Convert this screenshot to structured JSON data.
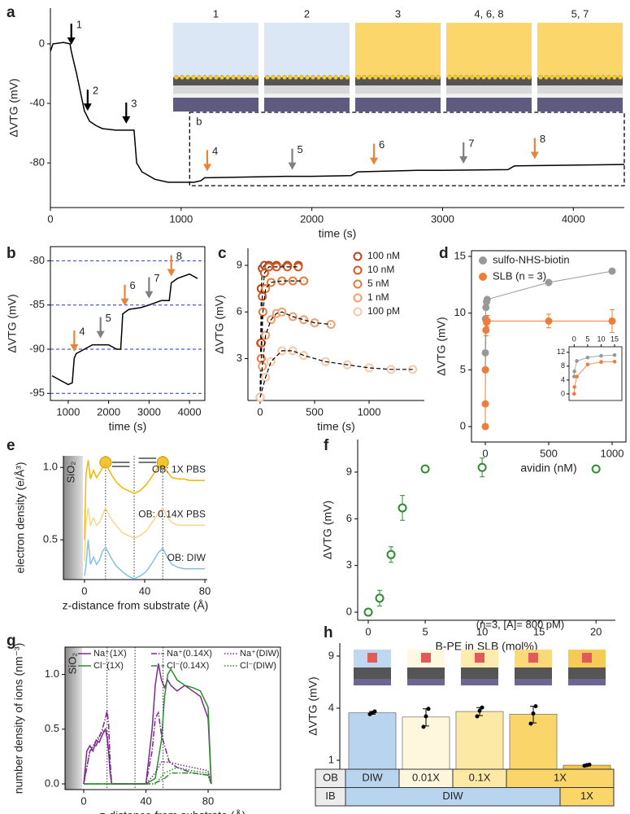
{
  "chart_data": [
    {
      "type": "line",
      "label": "a",
      "xlabel": "time (s)",
      "ylabel": "ΔVTG (mV)",
      "xlim": [
        0,
        4390
      ],
      "ylim": [
        -110,
        24
      ],
      "xticks": [
        0,
        1000,
        2000,
        3000,
        4000
      ],
      "yticks": [
        -80,
        -40,
        0
      ],
      "x": [
        0,
        20,
        100,
        150,
        160,
        200,
        260,
        300,
        350,
        400,
        500,
        640,
        660,
        700,
        800,
        900,
        1000,
        1100,
        1150,
        1180,
        1500,
        1800,
        2000,
        2300,
        2350,
        2800,
        3000,
        3500,
        3550,
        4000,
        4390
      ],
      "series": [
        {
          "color": "#000000",
          "line": "solid",
          "values": [
            -5,
            0,
            1,
            0,
            -5,
            -20,
            -45,
            -52,
            -55,
            -57,
            -58,
            -58,
            -80,
            -86,
            -91,
            -93,
            -93,
            -93,
            -92,
            -90,
            -89.5,
            -89,
            -89,
            -88.5,
            -86,
            -85,
            -85,
            -84.5,
            -82,
            -81.5,
            -81
          ]
        }
      ],
      "events": [
        {
          "label": "1",
          "x": 160,
          "color": "#000000"
        },
        {
          "label": "2",
          "x": 285,
          "color": "#000000"
        },
        {
          "label": "3",
          "x": 580,
          "color": "#000000"
        },
        {
          "label": "4",
          "x": 1200,
          "color": "#e8833a"
        },
        {
          "label": "5",
          "x": 1850,
          "color": "#808080"
        },
        {
          "label": "6",
          "x": 2475,
          "color": "#e8833a"
        },
        {
          "label": "7",
          "x": 3160,
          "color": "#808080"
        },
        {
          "label": "8",
          "x": 3705,
          "color": "#e8833a"
        }
      ],
      "zoom_box": {
        "label": "b",
        "xlim": [
          1065,
          4390
        ],
        "ylim": [
          -95.3,
          -46
        ]
      },
      "schematic": {
        "labels": [
          "1",
          "2",
          "3",
          "4, 6, 8",
          "5, 7"
        ],
        "label_colors": [
          "#000000",
          "#000000",
          "#000000",
          "#e8833a",
          "#808080"
        ],
        "backgrounds": [
          "#dbe7f4",
          "#dbe7f4",
          "#fbd66b",
          "#fbd66b",
          "#fbd66b"
        ]
      }
    },
    {
      "type": "line",
      "label": "b",
      "xlabel": "time (s)",
      "ylabel": "ΔVTG (mV)",
      "frame": true,
      "grid": true,
      "grid_color": "#2233cc",
      "xlim": [
        560,
        4380
      ],
      "ylim": [
        -95.8,
        -78.4
      ],
      "xticks": [
        1000,
        2000,
        3000,
        4000
      ],
      "yticks": [
        -80,
        -85,
        -90,
        -95
      ],
      "x": [
        600,
        800,
        1000,
        1100,
        1150,
        1200,
        1400,
        1600,
        1800,
        2000,
        2200,
        2300,
        2350,
        2500,
        2800,
        3000,
        3300,
        3500,
        3550,
        3700,
        4000,
        4200
      ],
      "series": [
        {
          "color": "#000000",
          "line": "solid",
          "values": [
            -93,
            -93.5,
            -94,
            -93.8,
            -91,
            -90.5,
            -90,
            -89.5,
            -89.5,
            -89.5,
            -90,
            -90,
            -86,
            -85.5,
            -85.3,
            -85,
            -84.5,
            -84.5,
            -82.5,
            -82,
            -81.5,
            -82
          ]
        }
      ],
      "events": [
        {
          "label": "4",
          "x": 1150,
          "color": "#e8833a"
        },
        {
          "label": "5",
          "x": 1800,
          "color": "#808080"
        },
        {
          "label": "6",
          "x": 2400,
          "color": "#e8833a"
        },
        {
          "label": "7",
          "x": 3000,
          "color": "#808080"
        },
        {
          "label": "8",
          "x": 3550,
          "color": "#e8833a"
        }
      ]
    },
    {
      "type": "scatter",
      "label": "c",
      "xlabel": "time (s)",
      "ylabel": "ΔVTG (mV)",
      "legend": "upper right",
      "fit_line": "dashed",
      "xlim": [
        -112,
        1507
      ],
      "ylim": [
        0.3,
        10.1
      ],
      "xticks": [
        0,
        500,
        1000
      ],
      "yticks": [
        3,
        6,
        9
      ],
      "series": [
        {
          "name": "100 nM",
          "color": "#b5451b",
          "marker": "open",
          "x": [
            0,
            5,
            10,
            20,
            40,
            80,
            150,
            250,
            350
          ],
          "values": [
            0.5,
            4,
            7.5,
            8.8,
            9,
            9,
            9,
            9,
            9
          ]
        },
        {
          "name": "10 nM",
          "color": "#d9581c",
          "marker": "open",
          "x": [
            0,
            10,
            20,
            40,
            80,
            150,
            250,
            350
          ],
          "values": [
            0.5,
            4,
            7,
            8.5,
            8.9,
            8.9,
            8.9,
            8.9
          ]
        },
        {
          "name": "5 nM",
          "color": "#e87a3a",
          "marker": "open",
          "x": [
            0,
            10,
            25,
            50,
            100,
            200,
            300,
            400
          ],
          "values": [
            0.5,
            3,
            6,
            7.5,
            7.9,
            8,
            8,
            8
          ]
        },
        {
          "name": "1 nM",
          "color": "#f0a070",
          "marker": "open",
          "x": [
            0,
            20,
            50,
            100,
            150,
            200,
            300,
            400,
            500,
            650
          ],
          "values": [
            0.5,
            2.5,
            4.5,
            5.5,
            5.9,
            6,
            5.7,
            5.5,
            5.3,
            5.2
          ]
        },
        {
          "name": "100 pM",
          "color": "#f8c9a8",
          "marker": "open",
          "x": [
            0,
            50,
            100,
            200,
            300,
            400,
            600,
            800,
            1000,
            1200,
            1400
          ],
          "values": [
            0.5,
            1.8,
            2.8,
            3.5,
            3.5,
            3.2,
            2.8,
            2.6,
            2.4,
            2.3,
            2.3
          ]
        }
      ]
    },
    {
      "type": "scatter",
      "label": "d",
      "xlabel": "avidin (nM)",
      "ylabel": "ΔVTG (mV)",
      "legend": "upper left",
      "frame": true,
      "xlim": [
        -109,
        1109
      ],
      "ylim": [
        -1.36,
        15.5
      ],
      "xticks": [
        0,
        500,
        1000
      ],
      "yticks": [
        0,
        5,
        10,
        15
      ],
      "x": [
        0,
        0.1,
        1,
        5,
        10,
        15,
        500,
        1000
      ],
      "series": [
        {
          "name": "sulfo-NHS-biotin",
          "color": "#999999",
          "marker": "filled",
          "line": "solid",
          "values": [
            5,
            6.5,
            9.5,
            10.5,
            11,
            11.2,
            12.7,
            13.7
          ]
        },
        {
          "name": "SLB (n = 3)",
          "color": "#f07c3a",
          "marker": "filled",
          "line": "solid",
          "values": [
            0,
            2,
            5,
            8.5,
            9.2,
            9.3,
            9.3,
            9.3
          ],
          "errors": [
            0,
            0,
            0,
            0.5,
            0.5,
            0.5,
            0.6,
            1
          ]
        }
      ],
      "inset": {
        "xlim": [
          -1.9,
          17.7
        ],
        "ylim": [
          -1.9,
          13.6
        ],
        "xticks": [
          0,
          5,
          10,
          15
        ],
        "yticks": [
          0,
          4,
          8,
          12
        ]
      }
    },
    {
      "type": "line",
      "label": "e",
      "xlabel": "z-distance from substrate (Å)",
      "ylabel": "electron density (e/Å³)",
      "series_labels": "inline",
      "substrate_label": "SiO₂",
      "xlim": [
        -14,
        81.6
      ],
      "ylim": [
        0.225,
        1.08
      ],
      "xticks": [
        0,
        40,
        80
      ],
      "yticks": [
        0.5,
        {
          "value": 1,
          "label": "1.0"
        }
      ],
      "vlines": [
        14,
        33,
        52
      ],
      "x": [
        0,
        1,
        2.5,
        4,
        6,
        8,
        10,
        12,
        14,
        16,
        18,
        21,
        25,
        29,
        33,
        37,
        41,
        45,
        49,
        52,
        55,
        58,
        62,
        66,
        70,
        75,
        80
      ],
      "series": [
        {
          "name": "OB: 1X PBS",
          "color": "#f2b705",
          "line": "solid",
          "values": [
            0.5,
            0.95,
            1.05,
            0.92,
            0.98,
            0.93,
            0.96,
            1.0,
            1.02,
            0.99,
            0.95,
            0.9,
            0.86,
            0.84,
            0.82,
            0.84,
            0.88,
            0.94,
            1.0,
            1.02,
            0.97,
            0.93,
            0.92,
            0.92,
            0.91,
            0.91,
            0.91
          ]
        },
        {
          "name": "OB: 0.14X PBS",
          "color": "#f5d78e",
          "line": "solid",
          "values": [
            0.35,
            0.62,
            0.72,
            0.6,
            0.65,
            0.6,
            0.62,
            0.67,
            0.72,
            0.68,
            0.64,
            0.6,
            0.55,
            0.53,
            0.51,
            0.53,
            0.56,
            0.62,
            0.68,
            0.72,
            0.66,
            0.62,
            0.6,
            0.6,
            0.6,
            0.6,
            0.6
          ]
        },
        {
          "name": "OB: DIW",
          "color": "#86c0e6",
          "line": "solid",
          "values": [
            0.25,
            0.32,
            0.5,
            0.33,
            0.38,
            0.33,
            0.36,
            0.42,
            0.45,
            0.41,
            0.37,
            0.32,
            0.28,
            0.25,
            0.23,
            0.25,
            0.28,
            0.34,
            0.41,
            0.44,
            0.38,
            0.33,
            0.31,
            0.3,
            0.3,
            0.3,
            0.3
          ]
        }
      ]
    },
    {
      "type": "scatter",
      "label": "f",
      "xlabel": "B-PE in SLB (mol%)",
      "ylabel": "ΔVTG (mV)",
      "xlim": [
        -0.93,
        21.7
      ],
      "ylim": [
        -0.52,
        11.09
      ],
      "xticks": [
        0,
        5,
        10,
        15,
        20
      ],
      "yticks": [
        0,
        3,
        6,
        9
      ],
      "x": [
        0,
        1,
        2,
        3,
        5,
        10,
        20
      ],
      "series": [
        {
          "color": "#2e8b2e",
          "marker": "open",
          "values": [
            0,
            0.9,
            3.7,
            6.7,
            9.2,
            9.3,
            9.2
          ],
          "errors": [
            0.1,
            0.5,
            0.5,
            0.8,
            0.1,
            0.6,
            0.1
          ]
        }
      ]
    },
    {
      "type": "line",
      "label": "g",
      "xlabel": "z-distance from substrate (Å)",
      "ylabel": "number density of ions (nm⁻³)",
      "legend": "top",
      "frame": true,
      "substrate_label": "SiO₂",
      "xlim": [
        -12,
        126.5
      ],
      "ylim": [
        -0.052,
        1.25
      ],
      "xticks": [
        0,
        40,
        80
      ],
      "yticks": [
        {
          "value": 0,
          "label": "0.0"
        },
        0.5,
        {
          "value": 1,
          "label": "1.0"
        }
      ],
      "vlines": [
        15,
        33,
        51
      ],
      "series": [
        {
          "name": "Na⁺(1X)",
          "color": "#7d2a8c",
          "line": "solid",
          "x": [
            0,
            2,
            4,
            6,
            8,
            10,
            12,
            14,
            15,
            16,
            17,
            18,
            20,
            30,
            40,
            44,
            46,
            48,
            50,
            52,
            54,
            56,
            60,
            65,
            70,
            75,
            80,
            82
          ],
          "values": [
            0,
            0.3,
            0.35,
            0.3,
            0.4,
            0.38,
            0.45,
            0.5,
            0.42,
            0.3,
            0.1,
            0,
            0,
            0,
            0,
            0.5,
            0.9,
            1.1,
            0.95,
            0.88,
            0.95,
            0.9,
            0.85,
            0.9,
            0.85,
            0.8,
            0.6,
            0
          ]
        },
        {
          "name": "Cl⁻(1X)",
          "color": "#2a8f2a",
          "line": "solid",
          "x": [
            0,
            40,
            46,
            50,
            52,
            54,
            56,
            58,
            60,
            65,
            70,
            75,
            80,
            82
          ],
          "values": [
            0,
            0,
            0.05,
            0.4,
            0.8,
            1.0,
            1.05,
            1.0,
            0.95,
            0.9,
            0.88,
            0.85,
            0.7,
            0
          ]
        },
        {
          "name": "Na⁺(0.14X)",
          "color": "#7d2a8c",
          "line": "dashdot",
          "x": [
            0,
            4,
            8,
            12,
            14,
            15,
            16,
            17,
            18,
            20,
            40,
            44,
            46,
            48,
            50,
            52,
            55,
            60,
            70,
            80,
            82
          ],
          "values": [
            0,
            0.3,
            0.35,
            0.5,
            0.6,
            0.67,
            0.55,
            0.2,
            0,
            0,
            0,
            0.3,
            0.6,
            0.65,
            0.45,
            0.35,
            0.2,
            0.15,
            0.1,
            0.08,
            0
          ]
        },
        {
          "name": "Cl⁻(0.14X)",
          "color": "#2a8f2a",
          "line": "dashdot",
          "x": [
            0,
            44,
            48,
            52,
            56,
            60,
            70,
            80,
            82
          ],
          "values": [
            0,
            0,
            0.02,
            0.05,
            0.1,
            0.1,
            0.1,
            0.08,
            0
          ]
        },
        {
          "name": "Na⁺(DIW)",
          "color": "#7d2a8c",
          "line": "dotted",
          "x": [
            0,
            4,
            8,
            12,
            14,
            15,
            16,
            17,
            18,
            40,
            46,
            50,
            55,
            60,
            70,
            80,
            82
          ],
          "values": [
            0,
            0.3,
            0.4,
            0.48,
            0.5,
            0.48,
            0.3,
            0.1,
            0,
            0,
            0.1,
            0.2,
            0.2,
            0.18,
            0.15,
            0.12,
            0
          ]
        },
        {
          "name": "Cl⁻(DIW)",
          "color": "#2a8f2a",
          "line": "dotted",
          "x": [
            0,
            46,
            52,
            60,
            70,
            80,
            82
          ],
          "values": [
            0,
            0,
            0.1,
            0.15,
            0.12,
            0.1,
            0
          ]
        }
      ]
    },
    {
      "type": "bar",
      "label": "h",
      "ylabel": "ΔVTG (mV)",
      "yscale": "sqrt",
      "annotation": "(n=3, [A]= 800 pM)",
      "ylim": [
        0.686,
        10.56
      ],
      "yticks": [
        1,
        4,
        9
      ],
      "values": [
        3.65,
        3.35,
        3.75,
        3.55,
        0.82
      ],
      "errors": [
        0.1,
        0.6,
        0.3,
        0.6,
        0.02
      ],
      "colors": [
        "#b8d4ee",
        "#fff7dd",
        "#fde9a6",
        "#f9d56a",
        "#f5c542"
      ],
      "points": [
        [
          3.55,
          3.65,
          3.75
        ],
        [
          2.7,
          3.4,
          3.95
        ],
        [
          3.4,
          3.8,
          4.05
        ],
        [
          2.9,
          3.6,
          4.15
        ],
        [
          0.8,
          0.82,
          0.84
        ]
      ],
      "table": {
        "rows": [
          {
            "header": "OB",
            "cells": [
              {
                "text": "DIW",
                "span": 1,
                "color": "#b8d4ee"
              },
              {
                "text": "0.01X",
                "span": 1,
                "color": "#fff7dd"
              },
              {
                "text": "0.1X",
                "span": 1,
                "color": "#fde9a6"
              },
              {
                "text": "1X",
                "span": 2,
                "color": "#f9d56a"
              }
            ]
          },
          {
            "header": "IB",
            "cells": [
              {
                "text": "DIW",
                "span": 4,
                "color": "#b8d4ee"
              },
              {
                "text": "1X",
                "span": 1,
                "color": "#f9d56a"
              }
            ]
          }
        ]
      }
    }
  ]
}
